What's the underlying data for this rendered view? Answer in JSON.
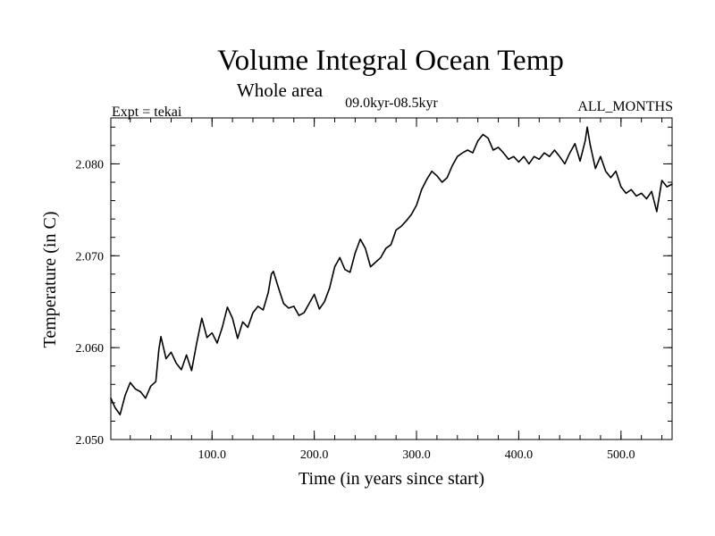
{
  "chart_data": {
    "type": "line",
    "title": "Volume Integral Ocean Temp",
    "subtitle": "Whole area",
    "period": "09.0kyr-08.5kyr",
    "experiment": "Expt = tekai",
    "months": "ALL_MONTHS",
    "xlabel": "Time (in years since start)",
    "ylabel": "Temperature (in C)",
    "xlim": [
      1,
      550
    ],
    "ylim": [
      2.05,
      2.085
    ],
    "x_ticks": [
      100,
      200,
      300,
      400,
      500
    ],
    "x_tick_labels": [
      "100.0",
      "200.0",
      "300.0",
      "400.0",
      "500.0"
    ],
    "y_ticks": [
      2.05,
      2.06,
      2.07,
      2.08
    ],
    "y_tick_labels": [
      "2.050",
      "2.060",
      "2.070",
      "2.080"
    ],
    "x_minor_step": 20,
    "y_minor_step": 0.002,
    "series": [
      {
        "name": "Volume integral ocean temperature",
        "x": [
          1,
          5,
          10,
          15,
          20,
          25,
          30,
          35,
          40,
          45,
          48,
          50,
          55,
          60,
          65,
          70,
          75,
          80,
          85,
          90,
          95,
          100,
          105,
          110,
          115,
          120,
          125,
          130,
          135,
          140,
          145,
          150,
          155,
          158,
          160,
          165,
          170,
          175,
          180,
          185,
          190,
          195,
          200,
          205,
          210,
          215,
          220,
          225,
          230,
          235,
          240,
          245,
          250,
          255,
          260,
          265,
          270,
          275,
          280,
          285,
          290,
          295,
          300,
          305,
          310,
          315,
          320,
          325,
          330,
          335,
          340,
          345,
          350,
          355,
          360,
          365,
          370,
          375,
          380,
          385,
          390,
          395,
          400,
          405,
          410,
          415,
          420,
          425,
          430,
          435,
          440,
          445,
          450,
          455,
          460,
          465,
          467,
          470,
          475,
          480,
          485,
          490,
          495,
          500,
          505,
          510,
          515,
          520,
          525,
          530,
          535,
          540,
          545,
          550
        ],
        "values": [
          2.0545,
          2.0535,
          2.0527,
          2.0548,
          2.0562,
          2.0555,
          2.0552,
          2.0545,
          2.0558,
          2.0563,
          2.0598,
          2.0612,
          2.0588,
          2.0595,
          2.0583,
          2.0576,
          2.0592,
          2.0575,
          2.0605,
          2.0632,
          2.0611,
          2.0616,
          2.0605,
          2.0622,
          2.0644,
          2.0632,
          2.061,
          2.0628,
          2.0622,
          2.0638,
          2.0645,
          2.0641,
          2.066,
          2.068,
          2.0683,
          2.0665,
          2.0648,
          2.0643,
          2.0645,
          2.0635,
          2.0638,
          2.0648,
          2.0658,
          2.0642,
          2.065,
          2.0665,
          2.0688,
          2.0698,
          2.0685,
          2.0682,
          2.0703,
          2.0718,
          2.0708,
          2.0688,
          2.0693,
          2.0698,
          2.0708,
          2.0712,
          2.0728,
          2.0732,
          2.0738,
          2.0745,
          2.0755,
          2.0772,
          2.0783,
          2.0792,
          2.0787,
          2.078,
          2.0785,
          2.0798,
          2.0808,
          2.0812,
          2.0815,
          2.0812,
          2.0825,
          2.0832,
          2.0828,
          2.0815,
          2.0818,
          2.0812,
          2.0805,
          2.0808,
          2.0802,
          2.0808,
          2.08,
          2.0808,
          2.0805,
          2.0812,
          2.0808,
          2.0815,
          2.0808,
          2.08,
          2.0812,
          2.0822,
          2.0803,
          2.0825,
          2.084,
          2.082,
          2.0795,
          2.0808,
          2.0792,
          2.0785,
          2.0792,
          2.0775,
          2.0768,
          2.0772,
          2.0765,
          2.0768,
          2.0762,
          2.077,
          2.0748,
          2.0782,
          2.0775,
          2.0778
        ]
      }
    ]
  }
}
